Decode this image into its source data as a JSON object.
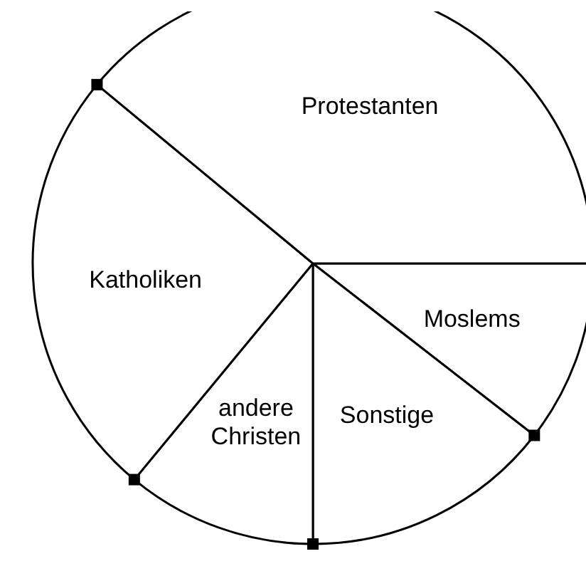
{
  "chart_data": {
    "type": "pie",
    "categories": [
      "Moslems",
      "Sonstige",
      "andere Christen",
      "Katholiken",
      "Protestanten"
    ],
    "values": [
      10.5,
      14.5,
      11,
      25,
      39
    ],
    "colors": [
      "#ffffff",
      "#ffffff",
      "#ffffff",
      "#ffffff",
      "#ffffff"
    ]
  }
}
